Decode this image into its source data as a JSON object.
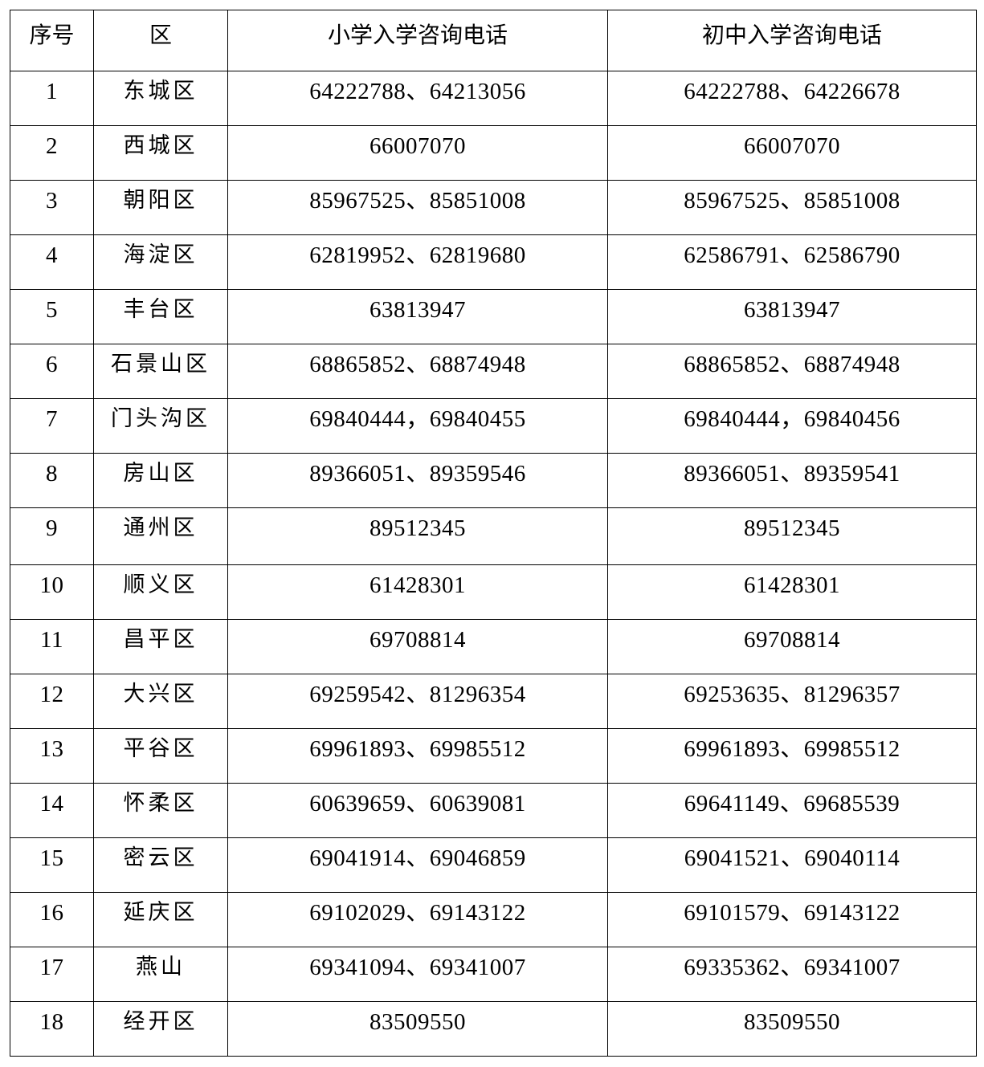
{
  "table": {
    "headers": [
      "序号",
      "区",
      "小学入学咨询电话",
      "初中入学咨询电话"
    ],
    "rows": [
      {
        "no": "1",
        "district": "东城区",
        "primary": "64222788、64213056",
        "middle": "64222788、64226678"
      },
      {
        "no": "2",
        "district": "西城区",
        "primary": "66007070",
        "middle": "66007070"
      },
      {
        "no": "3",
        "district": "朝阳区",
        "primary": "85967525、85851008",
        "middle": "85967525、85851008"
      },
      {
        "no": "4",
        "district": "海淀区",
        "primary": "62819952、62819680",
        "middle": "62586791、62586790"
      },
      {
        "no": "5",
        "district": "丰台区",
        "primary": "63813947",
        "middle": "63813947"
      },
      {
        "no": "6",
        "district": "石景山区",
        "primary": "68865852、68874948",
        "middle": "68865852、68874948"
      },
      {
        "no": "7",
        "district": "门头沟区",
        "primary": "69840444，69840455",
        "middle": "69840444，69840456"
      },
      {
        "no": "8",
        "district": "房山区",
        "primary": "89366051、89359546",
        "middle": "89366051、89359541"
      },
      {
        "no": "9",
        "district": "通州区",
        "primary": "89512345",
        "middle": "89512345"
      },
      {
        "no": "10",
        "district": "顺义区",
        "primary": "61428301",
        "middle": "61428301"
      },
      {
        "no": "11",
        "district": "昌平区",
        "primary": "69708814",
        "middle": "69708814"
      },
      {
        "no": "12",
        "district": "大兴区",
        "primary": "69259542、81296354",
        "middle": "69253635、81296357"
      },
      {
        "no": "13",
        "district": "平谷区",
        "primary": "69961893、69985512",
        "middle": "69961893、69985512"
      },
      {
        "no": "14",
        "district": "怀柔区",
        "primary": "60639659、60639081",
        "middle": "69641149、69685539"
      },
      {
        "no": "15",
        "district": "密云区",
        "primary": "69041914、69046859",
        "middle": "69041521、69040114"
      },
      {
        "no": "16",
        "district": "延庆区",
        "primary": "69102029、69143122",
        "middle": "69101579、69143122"
      },
      {
        "no": "17",
        "district": "燕山",
        "primary": "69341094、69341007",
        "middle": "69335362、69341007"
      },
      {
        "no": "18",
        "district": "经开区",
        "primary": "83509550",
        "middle": "83509550"
      }
    ]
  }
}
